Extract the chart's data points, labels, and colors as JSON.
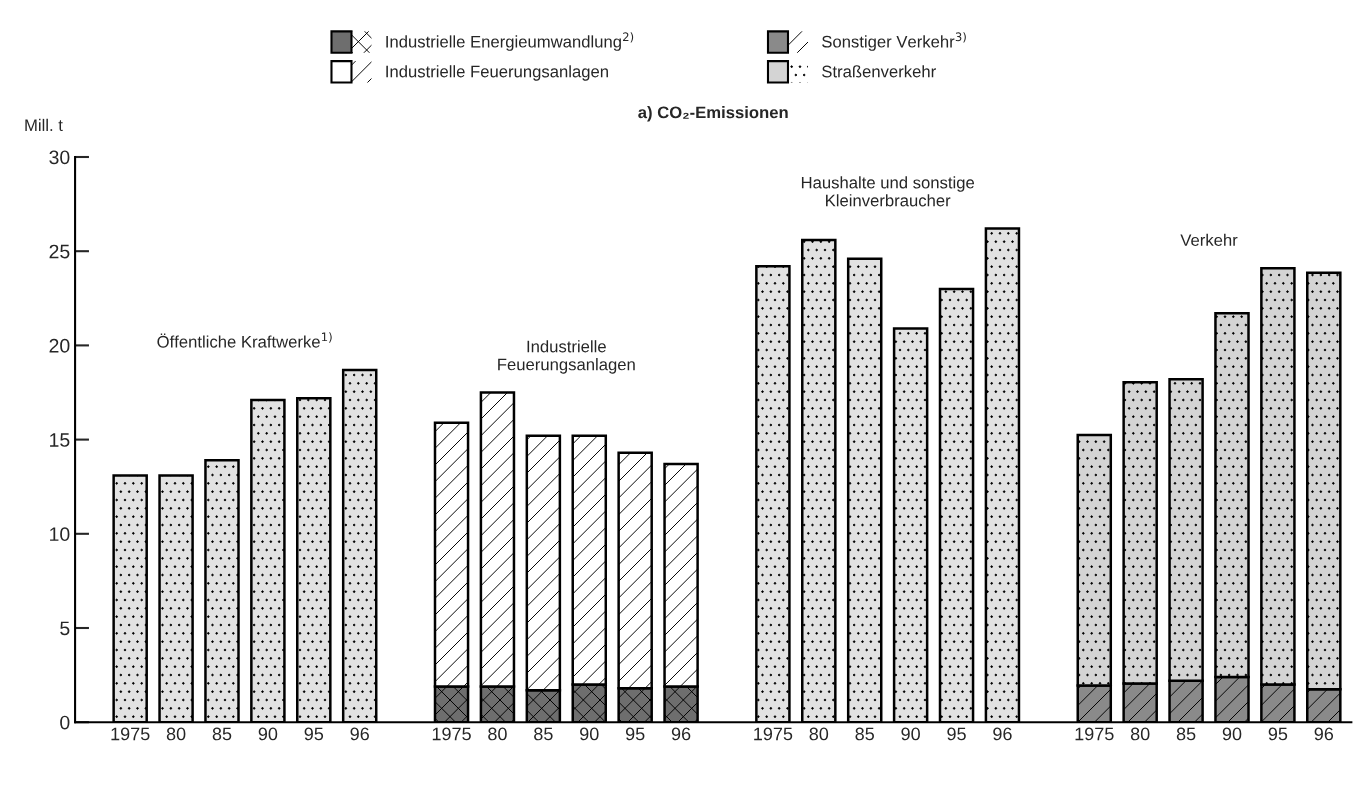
{
  "chart_data": {
    "type": "bar",
    "stacked": true,
    "title": "a) CO₂-Emissionen",
    "ylabel": "Mill. t",
    "categories": [
      "1975",
      "80",
      "85",
      "90",
      "95",
      "96",
      null,
      "1975",
      "80",
      "85",
      "90",
      "95",
      "96",
      null,
      "1975",
      "80",
      "85",
      "90",
      "95",
      "96",
      null,
      "1975",
      "80",
      "85",
      "90",
      "95",
      "96"
    ],
    "series": [
      {
        "name": "Industrielle Energieumwandlung$^{2)}$",
        "color": "#6e6e6e",
        "values": [
          null,
          null,
          null,
          null,
          null,
          null,
          null,
          1.9,
          1.9,
          1.7,
          2.0,
          1.8,
          1.9,
          null,
          null,
          null,
          null,
          null,
          null,
          null,
          null,
          null,
          null,
          null,
          null,
          null,
          null
        ]
      },
      {
        "name": "Industrielle Feuerungsanlagen",
        "color": "#ffffff",
        "values": [
          null,
          null,
          null,
          null,
          null,
          null,
          null,
          14.0,
          15.6,
          13.5,
          13.2,
          12.5,
          11.8,
          null,
          null,
          null,
          null,
          null,
          null,
          null,
          null,
          null,
          null,
          null,
          null,
          null,
          null
        ]
      },
      {
        "name": "Sonstiger Verkehr$^{3)}$",
        "color": "#8a8a8a",
        "values": [
          null,
          null,
          null,
          null,
          null,
          null,
          null,
          null,
          null,
          null,
          null,
          null,
          null,
          null,
          null,
          null,
          null,
          null,
          null,
          null,
          null,
          1.95,
          2.05,
          2.2,
          2.4,
          2.0,
          1.75
        ]
      },
      {
        "name": "Straßenverkehr",
        "color": "#d4d4d4",
        "values": [
          null,
          null,
          null,
          null,
          null,
          null,
          null,
          null,
          null,
          null,
          null,
          null,
          null,
          null,
          null,
          null,
          null,
          null,
          null,
          null,
          null,
          13.3,
          16.0,
          16.0,
          19.3,
          22.1,
          22.1
        ]
      },
      {
        "color": "#e2e2e2",
        "values": [
          13.1,
          13.1,
          13.9,
          17.1,
          17.2,
          18.7,
          null,
          null,
          null,
          null,
          null,
          null,
          null,
          null,
          24.2,
          25.6,
          24.6,
          20.9,
          23.0,
          26.2,
          null,
          null,
          null,
          null,
          null,
          null,
          null
        ]
      }
    ],
    "annotations": [
      "Öffentliche Kraftwerke$^{1)}$",
      "Industrielle\nFeuerungsanlagen",
      "Haushalte und sonstige\nKleinverbraucher",
      "Verkehr"
    ],
    "ylim": [
      0,
      30
    ],
    "yticks": [
      0,
      5,
      10,
      15,
      20,
      25,
      30
    ],
    "legend": "top",
    "grid": false
  }
}
